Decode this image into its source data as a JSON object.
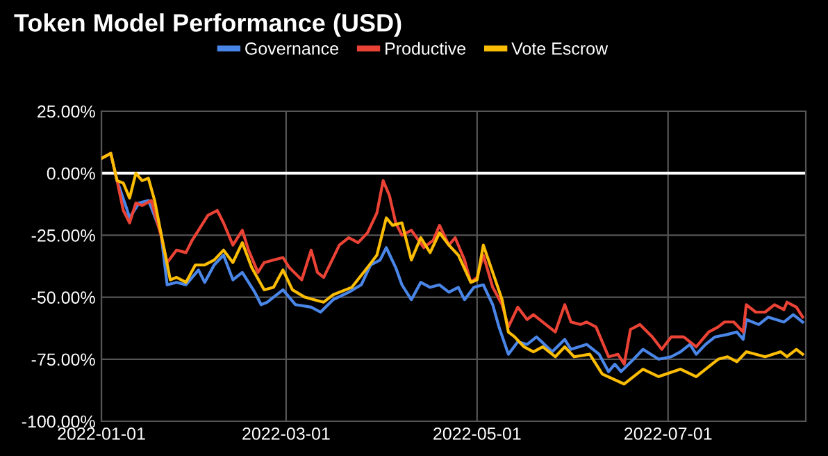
{
  "chart_data": {
    "type": "line",
    "title": "Token Model Performance (USD)",
    "xlim": [
      "2022-01-01",
      "2022-08-14"
    ],
    "xticks": [
      {
        "value": "2022-01-01",
        "label": "2022-01-01"
      },
      {
        "value": "2022-03-01",
        "label": "2022-03-01"
      },
      {
        "value": "2022-05-01",
        "label": "2022-05-01"
      },
      {
        "value": "2022-07-01",
        "label": "2022-07-01"
      }
    ],
    "ylim": [
      -100,
      25
    ],
    "yticks": [
      {
        "value": -100,
        "label": "-100.00%"
      },
      {
        "value": -75,
        "label": "-75.00%"
      },
      {
        "value": -50,
        "label": "-50.00%"
      },
      {
        "value": -25,
        "label": "-25.00%"
      },
      {
        "value": 0,
        "label": "0.00%"
      },
      {
        "value": 25,
        "label": "25.00%"
      }
    ],
    "grid": true,
    "legend": "top",
    "line_style": "solid",
    "marker": "none",
    "ref_lines": [
      {
        "axis": "y",
        "value": 0,
        "color": "#ffffff"
      }
    ],
    "series": [
      {
        "name": "Governance",
        "color": "#4a86e8",
        "x": [
          "2022-01-01",
          "2022-01-04",
          "2022-01-06",
          "2022-01-09",
          "2022-01-10",
          "2022-01-13",
          "2022-01-16",
          "2022-01-17",
          "2022-01-20",
          "2022-01-22",
          "2022-01-25",
          "2022-01-28",
          "2022-02-01",
          "2022-02-03",
          "2022-02-06",
          "2022-02-09",
          "2022-02-12",
          "2022-02-15",
          "2022-02-19",
          "2022-02-21",
          "2022-02-23",
          "2022-02-28",
          "2022-03-04",
          "2022-03-09",
          "2022-03-12",
          "2022-03-16",
          "2022-03-21",
          "2022-03-25",
          "2022-03-28",
          "2022-03-31",
          "2022-04-02",
          "2022-04-05",
          "2022-04-07",
          "2022-04-10",
          "2022-04-13",
          "2022-04-16",
          "2022-04-19",
          "2022-04-22",
          "2022-04-25",
          "2022-04-27",
          "2022-04-30",
          "2022-05-03",
          "2022-05-06",
          "2022-05-08",
          "2022-05-11",
          "2022-05-14",
          "2022-05-17",
          "2022-05-20",
          "2022-05-25",
          "2022-05-29",
          "2022-05-31",
          "2022-06-05",
          "2022-06-09",
          "2022-06-12",
          "2022-06-14",
          "2022-06-16",
          "2022-06-20",
          "2022-06-23",
          "2022-06-28",
          "2022-07-02",
          "2022-07-05",
          "2022-07-08",
          "2022-07-10",
          "2022-07-13",
          "2022-07-16",
          "2022-07-20",
          "2022-07-23",
          "2022-07-25",
          "2022-07-26",
          "2022-07-30",
          "2022-08-02",
          "2022-08-07",
          "2022-08-10",
          "2022-08-13"
        ],
        "values": [
          6,
          8,
          -3,
          -14,
          -18,
          -12,
          -11,
          -14,
          -24,
          -45,
          -44,
          -45,
          -39,
          -44,
          -37,
          -33,
          -43,
          -40,
          -48,
          -53,
          -52,
          -47,
          -53,
          -54,
          -56,
          -51,
          -48,
          -45,
          -37,
          -35,
          -30,
          -38,
          -45,
          -51,
          -44,
          -46,
          -45,
          -48,
          -46,
          -51,
          -46,
          -45,
          -53,
          -62,
          -73,
          -68,
          -69,
          -66,
          -72,
          -67,
          -71,
          -69,
          -73,
          -80,
          -77,
          -80,
          -75,
          -71,
          -75,
          -74,
          -72,
          -69,
          -73,
          -69,
          -66,
          -65,
          -64,
          -67,
          -59,
          -61,
          -58,
          -60,
          -57,
          -60
        ]
      },
      {
        "name": "Productive",
        "color": "#ea4335",
        "x": [
          "2022-01-01",
          "2022-01-04",
          "2022-01-06",
          "2022-01-08",
          "2022-01-10",
          "2022-01-12",
          "2022-01-14",
          "2022-01-17",
          "2022-01-18",
          "2022-01-20",
          "2022-01-22",
          "2022-01-25",
          "2022-01-28",
          "2022-01-30",
          "2022-02-01",
          "2022-02-04",
          "2022-02-07",
          "2022-02-09",
          "2022-02-12",
          "2022-02-15",
          "2022-02-17",
          "2022-02-20",
          "2022-02-22",
          "2022-02-25",
          "2022-02-28",
          "2022-03-02",
          "2022-03-06",
          "2022-03-09",
          "2022-03-11",
          "2022-03-13",
          "2022-03-18",
          "2022-03-21",
          "2022-03-24",
          "2022-03-27",
          "2022-03-30",
          "2022-04-01",
          "2022-04-03",
          "2022-04-05",
          "2022-04-07",
          "2022-04-10",
          "2022-04-14",
          "2022-04-17",
          "2022-04-19",
          "2022-04-22",
          "2022-04-24",
          "2022-04-27",
          "2022-04-29",
          "2022-05-01",
          "2022-05-03",
          "2022-05-06",
          "2022-05-09",
          "2022-05-11",
          "2022-05-14",
          "2022-05-17",
          "2022-05-19",
          "2022-05-22",
          "2022-05-26",
          "2022-05-29",
          "2022-05-31",
          "2022-06-03",
          "2022-06-05",
          "2022-06-08",
          "2022-06-12",
          "2022-06-15",
          "2022-06-17",
          "2022-06-19",
          "2022-06-22",
          "2022-06-26",
          "2022-06-29",
          "2022-07-02",
          "2022-07-06",
          "2022-07-10",
          "2022-07-14",
          "2022-07-17",
          "2022-07-19",
          "2022-07-22",
          "2022-07-25",
          "2022-07-26",
          "2022-07-29",
          "2022-08-01",
          "2022-08-04",
          "2022-08-07",
          "2022-08-08",
          "2022-08-11",
          "2022-08-13"
        ],
        "values": [
          6,
          8,
          -3,
          -15,
          -20,
          -12,
          -13,
          -11,
          -16,
          -25,
          -36,
          -31,
          -32,
          -27,
          -23,
          -17,
          -15,
          -20,
          -29,
          -23,
          -31,
          -40,
          -36,
          -35,
          -34,
          -38,
          -43,
          -31,
          -40,
          -42,
          -29,
          -26,
          -28,
          -24,
          -16,
          -3,
          -9,
          -20,
          -25,
          -23,
          -30,
          -27,
          -21,
          -29,
          -26,
          -35,
          -44,
          -42,
          -33,
          -46,
          -53,
          -62,
          -54,
          -59,
          -57,
          -60,
          -64,
          -53,
          -60,
          -61,
          -60,
          -62,
          -74,
          -73,
          -77,
          -63,
          -61,
          -66,
          -71,
          -66,
          -66,
          -70,
          -64,
          -62,
          -60,
          -60,
          -64,
          -53,
          -56,
          -56,
          -53,
          -55,
          -52,
          -54,
          -58
        ]
      },
      {
        "name": "Vote Escrow",
        "color": "#fbbc04",
        "x": [
          "2022-01-01",
          "2022-01-04",
          "2022-01-06",
          "2022-01-08",
          "2022-01-10",
          "2022-01-12",
          "2022-01-14",
          "2022-01-16",
          "2022-01-18",
          "2022-01-20",
          "2022-01-23",
          "2022-01-25",
          "2022-01-28",
          "2022-01-31",
          "2022-02-03",
          "2022-02-06",
          "2022-02-09",
          "2022-02-12",
          "2022-02-15",
          "2022-02-18",
          "2022-02-22",
          "2022-02-25",
          "2022-02-28",
          "2022-03-03",
          "2022-03-07",
          "2022-03-10",
          "2022-03-13",
          "2022-03-16",
          "2022-03-22",
          "2022-03-27",
          "2022-03-30",
          "2022-04-02",
          "2022-04-04",
          "2022-04-07",
          "2022-04-10",
          "2022-04-13",
          "2022-04-16",
          "2022-04-19",
          "2022-04-22",
          "2022-04-25",
          "2022-04-29",
          "2022-05-01",
          "2022-05-03",
          "2022-05-06",
          "2022-05-09",
          "2022-05-11",
          "2022-05-13",
          "2022-05-16",
          "2022-05-19",
          "2022-05-22",
          "2022-05-26",
          "2022-05-29",
          "2022-06-01",
          "2022-06-06",
          "2022-06-10",
          "2022-06-17",
          "2022-06-23",
          "2022-06-28",
          "2022-07-05",
          "2022-07-10",
          "2022-07-13",
          "2022-07-17",
          "2022-07-20",
          "2022-07-23",
          "2022-07-26",
          "2022-08-01",
          "2022-08-06",
          "2022-08-08",
          "2022-08-11",
          "2022-08-13"
        ],
        "values": [
          6,
          8,
          -3,
          -4,
          -10,
          0,
          -3,
          -2,
          -11,
          -24,
          -43,
          -42,
          -44,
          -37,
          -37,
          -35,
          -31,
          -36,
          -28,
          -38,
          -47,
          -46,
          -39,
          -47,
          -50,
          -51,
          -52,
          -49,
          -46,
          -38,
          -33,
          -18,
          -21,
          -20,
          -35,
          -26,
          -32,
          -24,
          -29,
          -33,
          -44,
          -43,
          -29,
          -40,
          -51,
          -64,
          -66,
          -70,
          -72,
          -70,
          -74,
          -70,
          -74,
          -73,
          -81,
          -85,
          -79,
          -82,
          -79,
          -82,
          -79,
          -75,
          -74,
          -76,
          -72,
          -74,
          -72,
          -74,
          -71,
          -73
        ]
      }
    ]
  }
}
